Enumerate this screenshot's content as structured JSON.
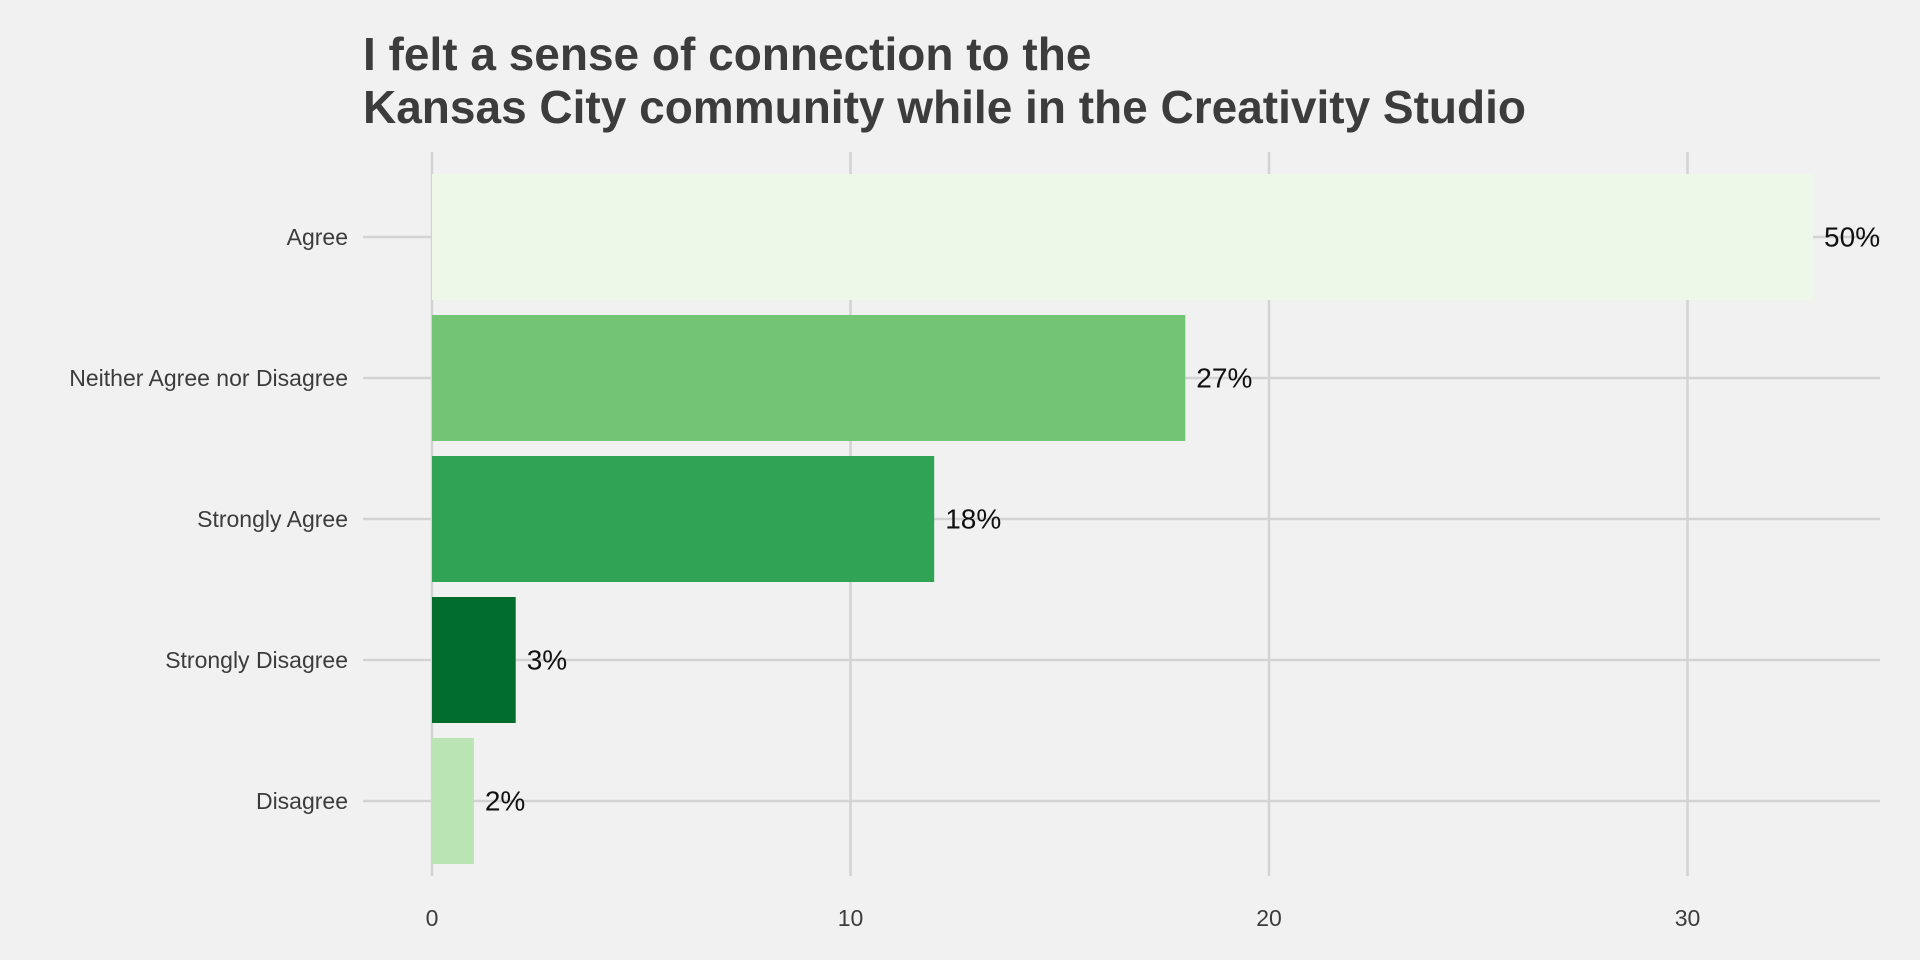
{
  "chart_data": {
    "type": "bar",
    "orientation": "horizontal",
    "title_lines": [
      "I felt a sense of connection to the",
      "Kansas City community while in the Creativity Studio"
    ],
    "categories": [
      "Agree",
      "Neither Agree nor Disagree",
      "Strongly Agree",
      "Strongly Disagree",
      "Disagree"
    ],
    "values": [
      33,
      18,
      12,
      2,
      1
    ],
    "data_labels": [
      "50%",
      "27%",
      "18%",
      "3%",
      "2%"
    ],
    "colors": [
      "#edf8e9",
      "#74c476",
      "#31a354",
      "#006d2c",
      "#bae4b3"
    ],
    "x_ticks": [
      0,
      10,
      20,
      30
    ],
    "xlim": [
      0,
      34.6
    ],
    "xlabel": "",
    "ylabel": "",
    "grid": true,
    "legend": "none"
  }
}
